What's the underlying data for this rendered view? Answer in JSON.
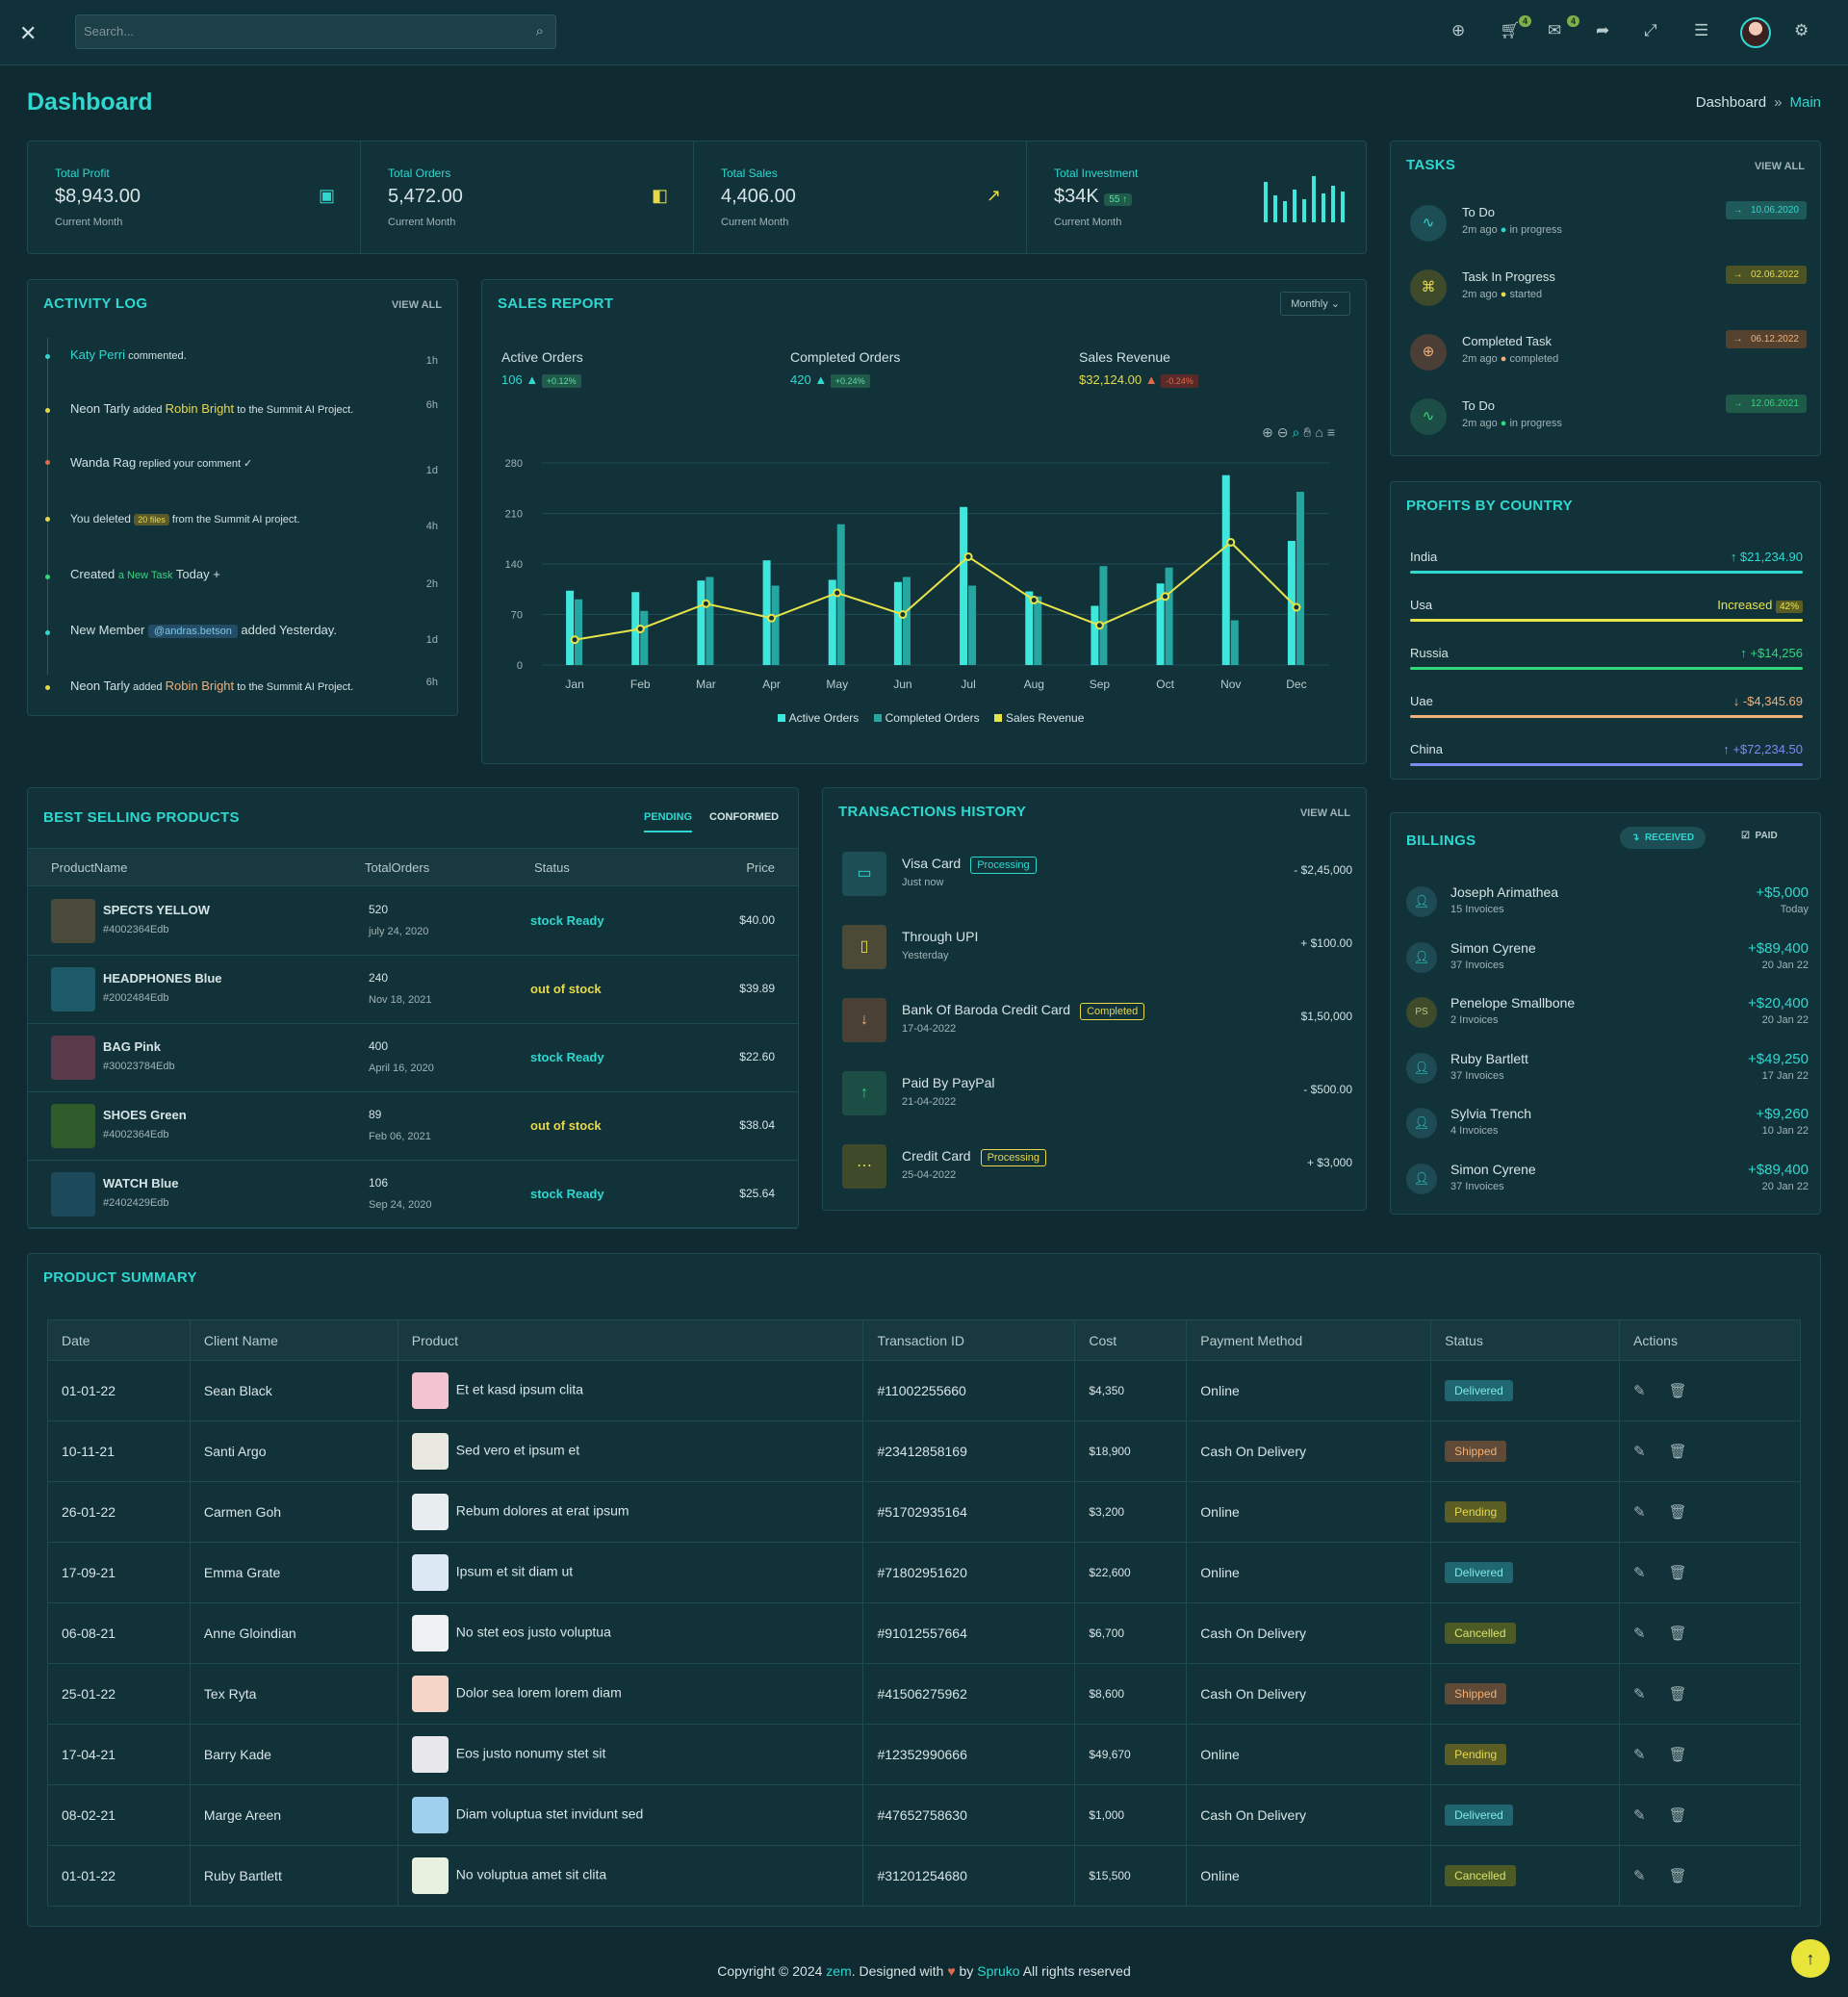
{
  "header": {
    "search_placeholder": "Search...",
    "cart_count": "4",
    "mail_count": "4"
  },
  "page": {
    "title": "Dashboard",
    "breadcrumb": [
      "Dashboard",
      "Main"
    ]
  },
  "stats": [
    {
      "label": "Total Profit",
      "value": "$8,943.00",
      "sub": "Current Month",
      "icon": "wallet-icon"
    },
    {
      "label": "Total Orders",
      "value": "5,472.00",
      "sub": "Current Month",
      "icon": "bag-icon"
    },
    {
      "label": "Total Sales",
      "value": "4,406.00",
      "sub": "Current Month",
      "icon": "trend-up-icon"
    },
    {
      "label": "Total Investment",
      "value": "$34K",
      "badge": "55",
      "sub": "Current Month",
      "icon": "bars-icon"
    }
  ],
  "activity": {
    "title": "ACTIVITY LOG",
    "view_all": "VIEW ALL",
    "items": [
      {
        "pre": "Katy Perri",
        "text": " commented.",
        "time": "1h"
      },
      {
        "pre": "Neon Tarly",
        "text": " added ",
        "hl": "Robin Bright",
        "post": " to the Summit AI Project.",
        "time": "6h"
      },
      {
        "pre": "Wanda Rag",
        "text": " replied your comment ✓",
        "time": "1d"
      },
      {
        "pre": "You deleted ",
        "pill": "20 files",
        "post": " from the Summit AI project.",
        "time": "4h"
      },
      {
        "pre": "Created ",
        "hl": "a New Task",
        "post": " Today +",
        "time": "2h"
      },
      {
        "pre": "New Member ",
        "pill": "@andras.betson",
        "post": " added Yesterday.",
        "time": "1d"
      },
      {
        "pre": "Neon Tarly",
        "text": " added ",
        "hl": "Robin Bright",
        "post": " to the Summit AI Project.",
        "time": "6h"
      }
    ]
  },
  "sales": {
    "title": "SALES REPORT",
    "period": "Monthly",
    "kpis": [
      {
        "label": "Active Orders",
        "value": "106",
        "delta": "+0.12%"
      },
      {
        "label": "Completed Orders",
        "value": "420",
        "delta": "+0.24%"
      },
      {
        "label": "Sales Revenue",
        "value": "$32,124.00",
        "delta": "-0.24%"
      }
    ]
  },
  "chart_data": {
    "type": "bar",
    "categories": [
      "Jan",
      "Feb",
      "Mar",
      "Apr",
      "May",
      "Jun",
      "Jul",
      "Aug",
      "Sep",
      "Oct",
      "Nov",
      "Dec"
    ],
    "series": [
      {
        "name": "Active Orders",
        "type": "bar",
        "color": "#3fe6db",
        "values": [
          103,
          101,
          117,
          145,
          118,
          115,
          219,
          102,
          82,
          113,
          263,
          172
        ]
      },
      {
        "name": "Completed Orders",
        "type": "bar",
        "color": "#26a6a0",
        "values": [
          91,
          75,
          122,
          110,
          195,
          122,
          110,
          95,
          137,
          135,
          62,
          240
        ]
      },
      {
        "name": "Sales Revenue",
        "type": "line",
        "color": "#e7e44a",
        "values": [
          35,
          50,
          85,
          65,
          100,
          70,
          150,
          90,
          55,
          95,
          170,
          80
        ]
      }
    ],
    "ylim": [
      0,
      280
    ],
    "yticks": [
      0,
      70,
      140,
      210,
      280
    ],
    "legend": "bottom"
  },
  "tasks": {
    "title": "TASKS",
    "view_all": "VIEW ALL",
    "items": [
      {
        "name": "To Do",
        "ago": "2m ago",
        "state": "in progress",
        "date": "10.06.2020",
        "color": "#2fd8cf"
      },
      {
        "name": "Task In Progress",
        "ago": "2m ago",
        "state": "started",
        "date": "02.06.2022",
        "color": "#e7d84a"
      },
      {
        "name": "Completed Task",
        "ago": "2m ago",
        "state": "completed",
        "date": "06.12.2022",
        "color": "#f0b07a"
      },
      {
        "name": "To Do",
        "ago": "2m ago",
        "state": "in progress",
        "date": "12.06.2021",
        "color": "#2fd87a"
      }
    ]
  },
  "profits": {
    "title": "PROFITS BY COUNTRY",
    "items": [
      {
        "country": "India",
        "amount": "↑ $21,234.90",
        "color": "#2fd8cf"
      },
      {
        "country": "Usa",
        "amount": "Increased",
        "badge": "42%",
        "color": "#e7e44a"
      },
      {
        "country": "Russia",
        "amount": "↑ +$14,256",
        "color": "#2fd87a"
      },
      {
        "country": "Uae",
        "amount": "↓ -$4,345.69",
        "color": "#f0b07a"
      },
      {
        "country": "China",
        "amount": "↑ +$72,234.50",
        "color": "#7a8cf0"
      }
    ]
  },
  "best_selling": {
    "title": "BEST SELLING PRODUCTS",
    "tabs": [
      "PENDING",
      "CONFORMED"
    ],
    "columns": [
      "ProductName",
      "TotalOrders",
      "Status",
      "Price"
    ],
    "rows": [
      {
        "name": "SPECTS YELLOW",
        "id": "#4002364Edb",
        "orders": "520",
        "date": "july 24, 2020",
        "status": "stock Ready",
        "price": "$40.00",
        "ok": true,
        "thumb": "#4a4a3a"
      },
      {
        "name": "HEADPHONES Blue",
        "id": "#2002484Edb",
        "orders": "240",
        "date": "Nov 18, 2021",
        "status": "out of stock",
        "price": "$39.89",
        "ok": false,
        "thumb": "#1d5a6a"
      },
      {
        "name": "BAG Pink",
        "id": "#30023784Edb",
        "orders": "400",
        "date": "April 16, 2020",
        "status": "stock Ready",
        "price": "$22.60",
        "ok": true,
        "thumb": "#5a3a4a"
      },
      {
        "name": "SHOES Green",
        "id": "#4002364Edb",
        "orders": "89",
        "date": "Feb 06, 2021",
        "status": "out of stock",
        "price": "$38.04",
        "ok": false,
        "thumb": "#2f5a2a"
      },
      {
        "name": "WATCH Blue",
        "id": "#2402429Edb",
        "orders": "106",
        "date": "Sep 24, 2020",
        "status": "stock Ready",
        "price": "$25.64",
        "ok": true,
        "thumb": "#1d4a5a"
      }
    ]
  },
  "transactions": {
    "title": "TRANSACTIONS HISTORY",
    "view_all": "VIEW ALL",
    "items": [
      {
        "name": "Visa Card",
        "badge": "Processing",
        "sub": "Just now",
        "amount": "- $2,45,000",
        "icon": "card-icon"
      },
      {
        "name": "Through UPI",
        "badge": "",
        "sub": "Yesterday",
        "amount": "+ $100.00",
        "icon": "phone-icon"
      },
      {
        "name": "Bank Of Baroda Credit Card",
        "badge": "Completed",
        "sub": "17-04-2022",
        "amount": "$1,50,000",
        "icon": "arrow-down-icon"
      },
      {
        "name": "Paid By PayPal",
        "badge": "",
        "sub": "21-04-2022",
        "amount": "- $500.00",
        "icon": "arrow-up-icon"
      },
      {
        "name": "Credit Card",
        "badge": "Processing",
        "sub": "25-04-2022",
        "amount": "+ $3,000",
        "icon": "dots-icon"
      }
    ]
  },
  "billings": {
    "title": "BILLINGS",
    "tabs": [
      "RECEIVED",
      "PAID"
    ],
    "items": [
      {
        "name": "Joseph Arimathea",
        "sub": "15 Invoices",
        "amount": "+$5,000",
        "date": "Today",
        "initials": ""
      },
      {
        "name": "Simon Cyrene",
        "sub": "37 Invoices",
        "amount": "+$89,400",
        "date": "20 Jan 22",
        "initials": ""
      },
      {
        "name": "Penelope Smallbone",
        "sub": "2 Invoices",
        "amount": "+$20,400",
        "date": "20 Jan 22",
        "initials": "PS"
      },
      {
        "name": "Ruby Bartlett",
        "sub": "37 Invoices",
        "amount": "+$49,250",
        "date": "17 Jan 22",
        "initials": ""
      },
      {
        "name": "Sylvia Trench",
        "sub": "4 Invoices",
        "amount": "+$9,260",
        "date": "10 Jan 22",
        "initials": ""
      },
      {
        "name": "Simon Cyrene",
        "sub": "37 Invoices",
        "amount": "+$89,400",
        "date": "20 Jan 22",
        "initials": ""
      }
    ]
  },
  "summary": {
    "title": "PRODUCT SUMMARY",
    "columns": [
      "Date",
      "Client Name",
      "Product",
      "Transaction ID",
      "Cost",
      "Payment Method",
      "Status",
      "Actions"
    ],
    "rows": [
      {
        "date": "01-01-22",
        "client": "Sean Black",
        "product": "Et et kasd ipsum clita",
        "tx": "#11002255660",
        "cost": "$4,350",
        "method": "Online",
        "status": "Delivered"
      },
      {
        "date": "10-11-21",
        "client": "Santi Argo",
        "product": "Sed vero et ipsum et",
        "tx": "#23412858169",
        "cost": "$18,900",
        "method": "Cash On Delivery",
        "status": "Shipped"
      },
      {
        "date": "26-01-22",
        "client": "Carmen Goh",
        "product": "Rebum dolores at erat ipsum",
        "tx": "#51702935164",
        "cost": "$3,200",
        "method": "Online",
        "status": "Pending"
      },
      {
        "date": "17-09-21",
        "client": "Emma Grate",
        "product": "Ipsum et sit diam ut",
        "tx": "#71802951620",
        "cost": "$22,600",
        "method": "Online",
        "status": "Delivered"
      },
      {
        "date": "06-08-21",
        "client": "Anne Gloindian",
        "product": "No stet eos justo voluptua",
        "tx": "#91012557664",
        "cost": "$6,700",
        "method": "Cash On Delivery",
        "status": "Cancelled"
      },
      {
        "date": "25-01-22",
        "client": "Tex Ryta",
        "product": "Dolor sea lorem lorem diam",
        "tx": "#41506275962",
        "cost": "$8,600",
        "method": "Cash On Delivery",
        "status": "Shipped"
      },
      {
        "date": "17-04-21",
        "client": "Barry Kade",
        "product": "Eos justo nonumy stet sit",
        "tx": "#12352990666",
        "cost": "$49,670",
        "method": "Online",
        "status": "Pending"
      },
      {
        "date": "08-02-21",
        "client": "Marge Areen",
        "product": "Diam voluptua stet invidunt sed",
        "tx": "#47652758630",
        "cost": "$1,000",
        "method": "Cash On Delivery",
        "status": "Delivered"
      },
      {
        "date": "01-01-22",
        "client": "Ruby Bartlett",
        "product": "No voluptua amet sit clita",
        "tx": "#31201254680",
        "cost": "$15,500",
        "method": "Online",
        "status": "Cancelled"
      }
    ]
  },
  "footer": {
    "pre": "Copyright © 2024 ",
    "brand": "zem",
    "mid": ". Designed with ",
    "by": " by ",
    "company": "Spruko",
    "post": " All rights reserved"
  }
}
